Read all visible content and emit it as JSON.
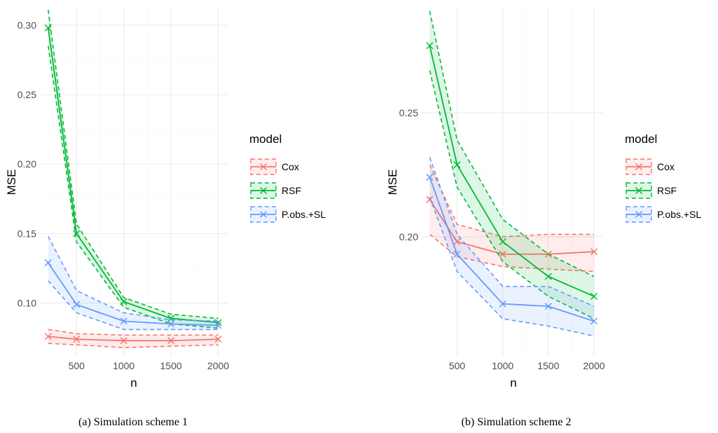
{
  "chart_data": [
    {
      "type": "line",
      "caption": "(a) Simulation scheme 1",
      "xlabel": "n",
      "ylabel": "MSE",
      "x": [
        200,
        500,
        1000,
        1500,
        2000
      ],
      "x_ticks": [
        500,
        1000,
        1500,
        2000
      ],
      "y_ticks": [
        0.1,
        0.15,
        0.2,
        0.25,
        0.3
      ],
      "y_tick_labels": [
        "0.10",
        "0.15",
        "0.20",
        "0.25",
        "0.30"
      ],
      "xlim": [
        120,
        2100
      ],
      "ylim": [
        0.062,
        0.312
      ],
      "grid": true,
      "legend": {
        "title": "model",
        "position": "right"
      },
      "series": [
        {
          "name": "Cox",
          "color": "#F8766D",
          "values": [
            0.076,
            0.074,
            0.073,
            0.073,
            0.074
          ],
          "lower": [
            0.071,
            0.07,
            0.068,
            0.069,
            0.07
          ],
          "upper": [
            0.081,
            0.078,
            0.077,
            0.077,
            0.077
          ]
        },
        {
          "name": "RSF",
          "color": "#00BA38",
          "values": [
            0.298,
            0.15,
            0.101,
            0.089,
            0.086
          ],
          "lower": [
            0.285,
            0.144,
            0.097,
            0.085,
            0.082
          ],
          "upper": [
            0.311,
            0.157,
            0.104,
            0.092,
            0.089
          ]
        },
        {
          "name": "P.obs.+SL",
          "color": "#619CFF",
          "values": [
            0.129,
            0.099,
            0.087,
            0.085,
            0.084
          ],
          "lower": [
            0.116,
            0.093,
            0.081,
            0.081,
            0.081
          ],
          "upper": [
            0.148,
            0.109,
            0.093,
            0.088,
            0.087
          ]
        }
      ]
    },
    {
      "type": "line",
      "caption": "(b) Simulation scheme 2",
      "xlabel": "n",
      "ylabel": "MSE",
      "x": [
        200,
        500,
        1000,
        1500,
        2000
      ],
      "x_ticks": [
        500,
        1000,
        1500,
        2000
      ],
      "y_ticks": [
        0.2,
        0.25
      ],
      "y_tick_labels": [
        "0.20",
        "0.25"
      ],
      "xlim": [
        120,
        2100
      ],
      "ylim": [
        0.152,
        0.292
      ],
      "grid": true,
      "legend": {
        "title": "model",
        "position": "right"
      },
      "series": [
        {
          "name": "Cox",
          "color": "#F8766D",
          "values": [
            0.215,
            0.198,
            0.193,
            0.193,
            0.194
          ],
          "lower": [
            0.201,
            0.192,
            0.188,
            0.187,
            0.186
          ],
          "upper": [
            0.229,
            0.205,
            0.2,
            0.201,
            0.201
          ]
        },
        {
          "name": "RSF",
          "color": "#00BA38",
          "values": [
            0.277,
            0.229,
            0.198,
            0.184,
            0.176
          ],
          "lower": [
            0.267,
            0.22,
            0.19,
            0.176,
            0.167
          ],
          "upper": [
            0.291,
            0.239,
            0.207,
            0.193,
            0.184
          ]
        },
        {
          "name": "P.obs.+SL",
          "color": "#619CFF",
          "values": [
            0.224,
            0.193,
            0.173,
            0.172,
            0.166
          ],
          "lower": [
            0.216,
            0.186,
            0.167,
            0.164,
            0.16
          ],
          "upper": [
            0.232,
            0.201,
            0.18,
            0.18,
            0.172
          ]
        }
      ]
    }
  ]
}
